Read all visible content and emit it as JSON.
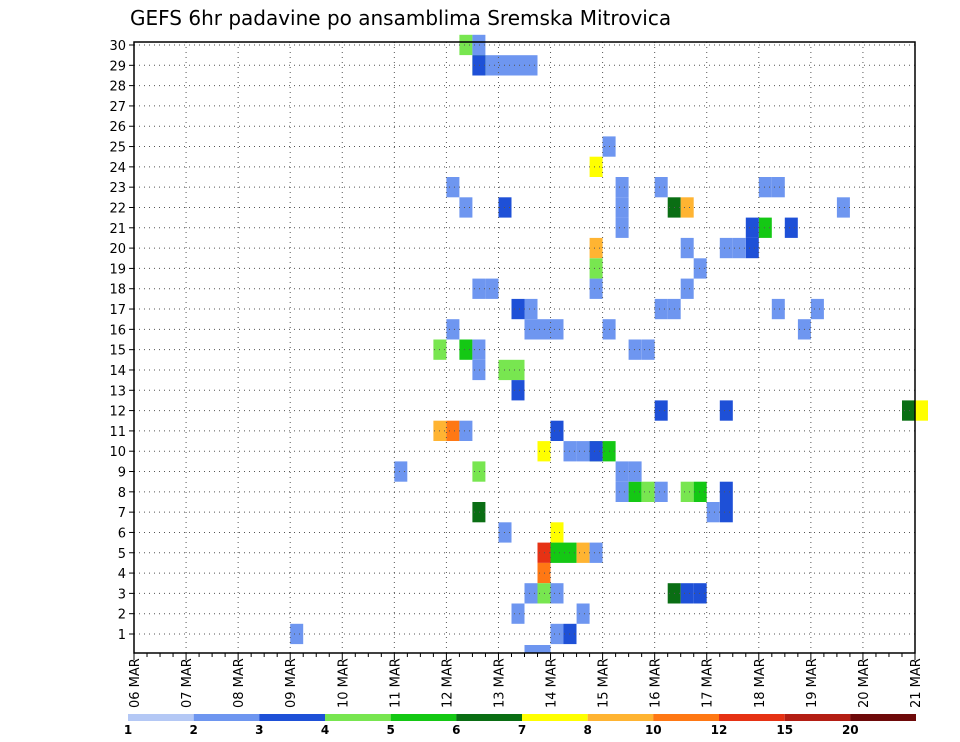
{
  "chart_data": {
    "type": "heatmap",
    "title": "GEFS 6hr padavine po ansamblima Sremska Mitrovica",
    "x_tick_labels": [
      "06 MAR",
      "07 MAR",
      "08 MAR",
      "09 MAR",
      "10 MAR",
      "11 MAR",
      "12 MAR",
      "13 MAR",
      "14 MAR",
      "15 MAR",
      "16 MAR",
      "17 MAR",
      "18 MAR",
      "19 MAR",
      "20 MAR",
      "21 MAR"
    ],
    "y_tick_labels": [
      "1",
      "2",
      "3",
      "4",
      "5",
      "6",
      "7",
      "8",
      "9",
      "10",
      "11",
      "12",
      "13",
      "14",
      "15",
      "16",
      "17",
      "18",
      "19",
      "20",
      "21",
      "22",
      "23",
      "24",
      "25",
      "26",
      "27",
      "28",
      "29",
      "30"
    ],
    "x_unit": "6-hour steps from 06 MAR 00Z",
    "xlim": [
      0,
      60
    ],
    "ylim": [
      0,
      30
    ],
    "grid": true,
    "legend": {
      "placement": "bottom",
      "labels": [
        "1",
        "2",
        "3",
        "4",
        "5",
        "6",
        "7",
        "8",
        "10",
        "12",
        "15",
        "20"
      ],
      "colors": [
        "#b4c8f5",
        "#6e96f0",
        "#1e50d7",
        "#78e650",
        "#14c814",
        "#0a6e14",
        "#ffff00",
        "#ffb432",
        "#ff7814",
        "#e63214",
        "#b41e14",
        "#6e0a0a"
      ]
    },
    "cells": [
      [
        25,
        30,
        3
      ],
      [
        26,
        30,
        1
      ],
      [
        26,
        29,
        3
      ],
      [
        26,
        29,
        2
      ],
      [
        27,
        29,
        1
      ],
      [
        28,
        29,
        1
      ],
      [
        29,
        29,
        1
      ],
      [
        30,
        29,
        1
      ],
      [
        36,
        25,
        1
      ],
      [
        35,
        24,
        6
      ],
      [
        37,
        23,
        1
      ],
      [
        37,
        22,
        1
      ],
      [
        37,
        21,
        1
      ],
      [
        40,
        23,
        1
      ],
      [
        48,
        23,
        1
      ],
      [
        49,
        23,
        1
      ],
      [
        41,
        22,
        5
      ],
      [
        42,
        22,
        7
      ],
      [
        42,
        20,
        1
      ],
      [
        41,
        17,
        1
      ],
      [
        52,
        17,
        1
      ],
      [
        48,
        21,
        4
      ],
      [
        47,
        21,
        2
      ],
      [
        50,
        21,
        2
      ],
      [
        35,
        20,
        7
      ],
      [
        45,
        20,
        1
      ],
      [
        47,
        20,
        2
      ],
      [
        43,
        19,
        1
      ],
      [
        35,
        19,
        3
      ],
      [
        35,
        18,
        1
      ],
      [
        42,
        18,
        1
      ],
      [
        40,
        17,
        1
      ],
      [
        49,
        17,
        1
      ],
      [
        51,
        16,
        1
      ],
      [
        23,
        15,
        3
      ],
      [
        25,
        15,
        4
      ],
      [
        26,
        15,
        1
      ],
      [
        38,
        15,
        1
      ],
      [
        39,
        15,
        1
      ],
      [
        26,
        14,
        1
      ],
      [
        28,
        14,
        3
      ],
      [
        29,
        14,
        3
      ],
      [
        29,
        13,
        2
      ],
      [
        30,
        16,
        1
      ],
      [
        31,
        16,
        1
      ],
      [
        32,
        16,
        1
      ],
      [
        40,
        12,
        2
      ],
      [
        45,
        12,
        2
      ],
      [
        59,
        12,
        5
      ],
      [
        60,
        12,
        6
      ],
      [
        23,
        11,
        7
      ],
      [
        24,
        11,
        8
      ],
      [
        25,
        11,
        1
      ],
      [
        33,
        10,
        1
      ],
      [
        34,
        10,
        1
      ],
      [
        31,
        10,
        6
      ],
      [
        35,
        10,
        3
      ],
      [
        36,
        10,
        4
      ],
      [
        35,
        10,
        2
      ],
      [
        45,
        8,
        2
      ],
      [
        45,
        7,
        2
      ],
      [
        42,
        8,
        3
      ],
      [
        43,
        8,
        4
      ],
      [
        44,
        7,
        1
      ],
      [
        37,
        8,
        1
      ],
      [
        38,
        8,
        4
      ],
      [
        39,
        8,
        3
      ],
      [
        40,
        8,
        1
      ],
      [
        32,
        6,
        6
      ],
      [
        32,
        5,
        4
      ],
      [
        33,
        5,
        4
      ],
      [
        34,
        5,
        7
      ],
      [
        35,
        5,
        1
      ],
      [
        31,
        5,
        9
      ],
      [
        31,
        4,
        8
      ],
      [
        30,
        3,
        1
      ],
      [
        31,
        3,
        3
      ],
      [
        32,
        3,
        1
      ],
      [
        29,
        2,
        1
      ],
      [
        34,
        2,
        1
      ],
      [
        32,
        1,
        1
      ],
      [
        33,
        1,
        2
      ],
      [
        30,
        0,
        1
      ],
      [
        31,
        0,
        1
      ],
      [
        26,
        7,
        5
      ],
      [
        28,
        6,
        1
      ],
      [
        20,
        9,
        1
      ],
      [
        26,
        9,
        3
      ],
      [
        37,
        9,
        1
      ],
      [
        38,
        9,
        1
      ],
      [
        32,
        11,
        2
      ],
      [
        24,
        16,
        1
      ],
      [
        36,
        16,
        1
      ],
      [
        30,
        17,
        1
      ],
      [
        29,
        17,
        2
      ],
      [
        26,
        18,
        1
      ],
      [
        27,
        18,
        1
      ],
      [
        24,
        23,
        1
      ],
      [
        25,
        22,
        1
      ],
      [
        28,
        22,
        2
      ],
      [
        46,
        20,
        1
      ],
      [
        54,
        22,
        1
      ],
      [
        12,
        1,
        1
      ],
      [
        41,
        3,
        5
      ],
      [
        42,
        3,
        2
      ],
      [
        43,
        3,
        2
      ]
    ]
  }
}
